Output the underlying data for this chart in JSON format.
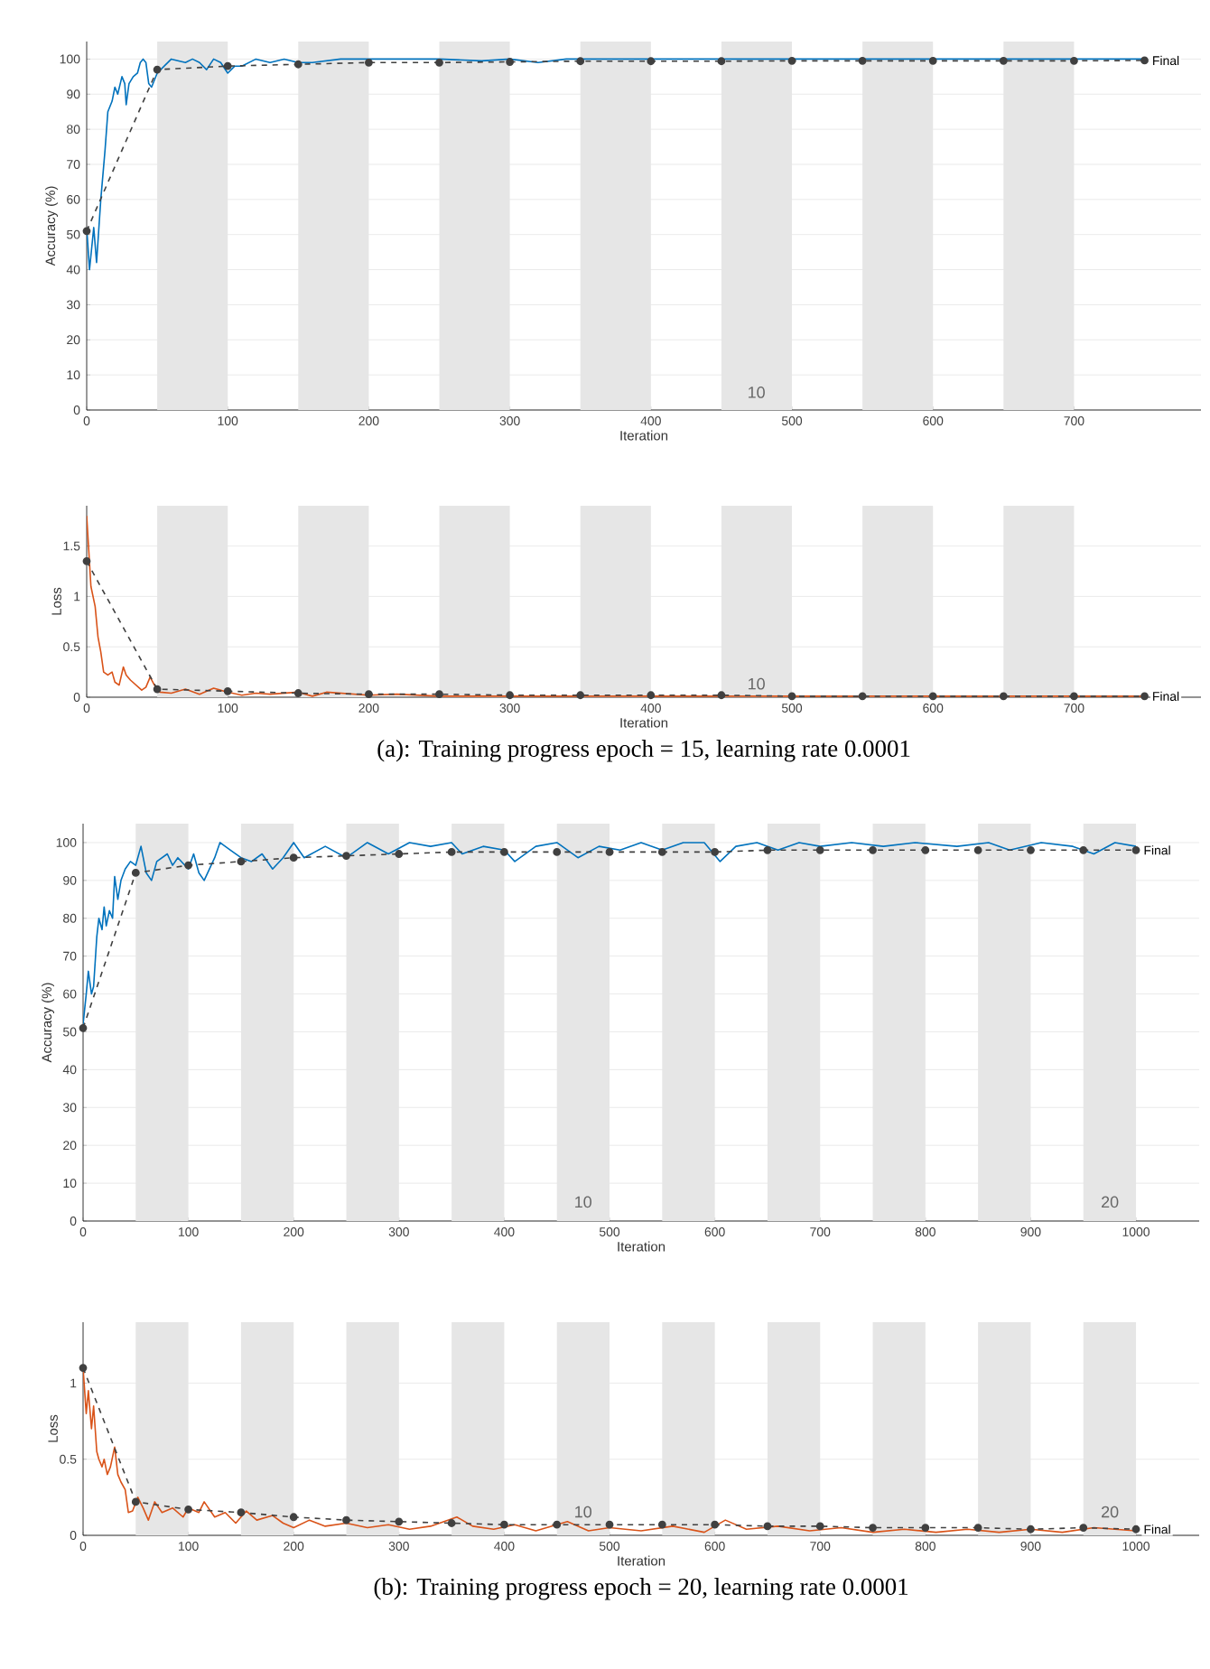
{
  "chart_data": [
    {
      "type": "line",
      "xlabel": "Iteration",
      "ylabel": "Accuracy (%)",
      "xlim": [
        0,
        790
      ],
      "xticks": [
        0,
        100,
        200,
        300,
        400,
        500,
        600,
        700
      ],
      "ylim": [
        0,
        105
      ],
      "yticks": [
        0,
        10,
        20,
        30,
        40,
        50,
        60,
        70,
        80,
        90,
        100
      ],
      "grid": "y",
      "bands": [
        {
          "axis": "x",
          "from": 50,
          "to": 100,
          "color": "#e6e6e6"
        },
        {
          "axis": "x",
          "from": 150,
          "to": 200,
          "color": "#e6e6e6"
        },
        {
          "axis": "x",
          "from": 250,
          "to": 300,
          "color": "#e6e6e6"
        },
        {
          "axis": "x",
          "from": 350,
          "to": 400,
          "color": "#e6e6e6"
        },
        {
          "axis": "x",
          "from": 450,
          "to": 500,
          "color": "#e6e6e6"
        },
        {
          "axis": "x",
          "from": 550,
          "to": 600,
          "color": "#e6e6e6"
        },
        {
          "axis": "x",
          "from": 650,
          "to": 700,
          "color": "#e6e6e6"
        }
      ],
      "series": [
        {
          "color": "#0072bd",
          "line_style": "solid",
          "marker": "none",
          "x": [
            0,
            2,
            5,
            7,
            10,
            13,
            15,
            18,
            20,
            22,
            25,
            27,
            28,
            30,
            33,
            36,
            38,
            40,
            42,
            44,
            46,
            48,
            50,
            55,
            60,
            70,
            75,
            80,
            85,
            90,
            95,
            100,
            105,
            110,
            120,
            130,
            140,
            150,
            160,
            180,
            200,
            250,
            280,
            300,
            320,
            340,
            400,
            500,
            600,
            700,
            750
          ],
          "values": [
            52,
            40,
            52,
            42,
            60,
            74,
            85,
            88,
            92,
            90,
            95,
            93,
            87,
            93,
            95,
            96,
            99,
            100,
            99,
            93,
            92,
            94,
            96,
            98,
            100,
            99,
            100,
            99,
            97,
            100,
            99,
            96,
            98,
            98,
            100,
            99,
            100,
            99,
            99,
            100,
            100,
            100,
            99.5,
            100,
            99,
            100,
            100,
            100,
            100,
            100,
            100
          ]
        },
        {
          "color": "#404040",
          "line_style": "dashed",
          "marker": "circle",
          "x": [
            0,
            50,
            100,
            150,
            200,
            250,
            300,
            350,
            400,
            450,
            500,
            550,
            600,
            650,
            700,
            750
          ],
          "values": [
            51,
            97,
            98,
            98.5,
            99,
            99,
            99.2,
            99.4,
            99.4,
            99.4,
            99.5,
            99.5,
            99.5,
            99.5,
            99.5,
            99.6
          ]
        }
      ],
      "annotations": [
        "Final",
        "10"
      ]
    },
    {
      "type": "line",
      "xlabel": "Iteration",
      "ylabel": "Loss",
      "xlim": [
        0,
        790
      ],
      "xticks": [
        0,
        100,
        200,
        300,
        400,
        500,
        600,
        700
      ],
      "ylim": [
        0,
        1.9
      ],
      "yticks": [
        0,
        0.5,
        1,
        1.5
      ],
      "grid": "y",
      "bands": [
        {
          "axis": "x",
          "from": 50,
          "to": 100,
          "color": "#e6e6e6"
        },
        {
          "axis": "x",
          "from": 150,
          "to": 200,
          "color": "#e6e6e6"
        },
        {
          "axis": "x",
          "from": 250,
          "to": 300,
          "color": "#e6e6e6"
        },
        {
          "axis": "x",
          "from": 350,
          "to": 400,
          "color": "#e6e6e6"
        },
        {
          "axis": "x",
          "from": 450,
          "to": 500,
          "color": "#e6e6e6"
        },
        {
          "axis": "x",
          "from": 550,
          "to": 600,
          "color": "#e6e6e6"
        },
        {
          "axis": "x",
          "from": 650,
          "to": 700,
          "color": "#e6e6e6"
        }
      ],
      "series": [
        {
          "color": "#d95319",
          "line_style": "solid",
          "marker": "none",
          "x": [
            0,
            3,
            6,
            8,
            10,
            12,
            15,
            18,
            20,
            23,
            26,
            28,
            31,
            35,
            39,
            42,
            45,
            48,
            52,
            60,
            70,
            80,
            90,
            100,
            110,
            120,
            130,
            150,
            160,
            170,
            200,
            220,
            250,
            300,
            350,
            400,
            500,
            600,
            700,
            750
          ],
          "values": [
            1.8,
            1.1,
            0.9,
            0.6,
            0.45,
            0.25,
            0.22,
            0.25,
            0.15,
            0.12,
            0.3,
            0.22,
            0.17,
            0.12,
            0.07,
            0.1,
            0.2,
            0.12,
            0.05,
            0.04,
            0.08,
            0.03,
            0.09,
            0.05,
            0.02,
            0.04,
            0.03,
            0.05,
            0.01,
            0.05,
            0.02,
            0.03,
            0.01,
            0.01,
            0.01,
            0.01,
            0.01,
            0.01,
            0.01,
            0.01
          ]
        },
        {
          "color": "#404040",
          "line_style": "dashed",
          "marker": "circle",
          "x": [
            0,
            50,
            100,
            150,
            200,
            250,
            300,
            350,
            400,
            450,
            500,
            550,
            600,
            650,
            700,
            750
          ],
          "values": [
            1.35,
            0.08,
            0.06,
            0.04,
            0.03,
            0.03,
            0.02,
            0.02,
            0.02,
            0.02,
            0.01,
            0.01,
            0.01,
            0.01,
            0.01,
            0.01
          ]
        }
      ],
      "annotations": [
        "Final",
        "10",
        "(a): Training progress epoch = 15, learning rate 0.0001"
      ]
    },
    {
      "type": "line",
      "xlabel": "Iteration",
      "ylabel": "Accuracy (%)",
      "xlim": [
        0,
        1060
      ],
      "xticks": [
        0,
        100,
        200,
        300,
        400,
        500,
        600,
        700,
        800,
        900,
        1000
      ],
      "ylim": [
        0,
        105
      ],
      "yticks": [
        0,
        10,
        20,
        30,
        40,
        50,
        60,
        70,
        80,
        90,
        100
      ],
      "grid": "y",
      "bands": [
        {
          "axis": "x",
          "from": 50,
          "to": 100,
          "color": "#e6e6e6"
        },
        {
          "axis": "x",
          "from": 150,
          "to": 200,
          "color": "#e6e6e6"
        },
        {
          "axis": "x",
          "from": 250,
          "to": 300,
          "color": "#e6e6e6"
        },
        {
          "axis": "x",
          "from": 350,
          "to": 400,
          "color": "#e6e6e6"
        },
        {
          "axis": "x",
          "from": 450,
          "to": 500,
          "color": "#e6e6e6"
        },
        {
          "axis": "x",
          "from": 550,
          "to": 600,
          "color": "#e6e6e6"
        },
        {
          "axis": "x",
          "from": 650,
          "to": 700,
          "color": "#e6e6e6"
        },
        {
          "axis": "x",
          "from": 750,
          "to": 800,
          "color": "#e6e6e6"
        },
        {
          "axis": "x",
          "from": 850,
          "to": 900,
          "color": "#e6e6e6"
        },
        {
          "axis": "x",
          "from": 950,
          "to": 1000,
          "color": "#e6e6e6"
        }
      ],
      "series": [
        {
          "color": "#0072bd",
          "line_style": "solid",
          "marker": "none",
          "x": [
            0,
            3,
            5,
            8,
            10,
            13,
            15,
            18,
            20,
            22,
            25,
            28,
            30,
            33,
            36,
            40,
            45,
            50,
            55,
            60,
            65,
            70,
            80,
            85,
            90,
            100,
            105,
            110,
            115,
            125,
            130,
            140,
            150,
            160,
            170,
            180,
            190,
            200,
            210,
            230,
            250,
            270,
            290,
            310,
            330,
            350,
            360,
            380,
            400,
            410,
            430,
            450,
            470,
            490,
            510,
            530,
            550,
            570,
            590,
            605,
            620,
            640,
            660,
            680,
            700,
            730,
            760,
            790,
            830,
            860,
            880,
            910,
            940,
            960,
            980,
            1000
          ],
          "values": [
            52,
            60,
            66,
            60,
            62,
            75,
            80,
            77,
            83,
            78,
            82,
            80,
            91,
            85,
            90,
            93,
            95,
            94,
            99,
            92,
            90,
            95,
            97,
            94,
            96,
            93,
            97,
            92,
            90,
            96,
            100,
            98,
            96,
            95,
            97,
            93,
            96,
            100,
            96,
            99,
            96,
            100,
            97,
            100,
            99,
            100,
            97,
            99,
            98,
            95,
            99,
            100,
            96,
            99,
            98,
            100,
            98,
            100,
            100,
            95,
            99,
            100,
            98,
            100,
            99,
            100,
            99,
            100,
            99,
            100,
            98,
            100,
            99,
            97,
            100,
            99
          ]
        },
        {
          "color": "#404040",
          "line_style": "dashed",
          "marker": "circle",
          "x": [
            0,
            50,
            100,
            150,
            200,
            250,
            300,
            350,
            400,
            450,
            500,
            550,
            600,
            650,
            700,
            750,
            800,
            850,
            900,
            950,
            1000
          ],
          "values": [
            51,
            92,
            94,
            95,
            96,
            96.5,
            97,
            97.5,
            97.5,
            97.5,
            97.5,
            97.5,
            97.5,
            98,
            98,
            98,
            98,
            98,
            98,
            98,
            98
          ]
        }
      ],
      "annotations": [
        "Final",
        "10",
        "20"
      ]
    },
    {
      "type": "line",
      "xlabel": "Iteration",
      "ylabel": "Loss",
      "xlim": [
        0,
        1060
      ],
      "xticks": [
        0,
        100,
        200,
        300,
        400,
        500,
        600,
        700,
        800,
        900,
        1000
      ],
      "ylim": [
        0,
        1.4
      ],
      "yticks": [
        0,
        0.5,
        1
      ],
      "grid": "y",
      "bands": [
        {
          "axis": "x",
          "from": 50,
          "to": 100,
          "color": "#e6e6e6"
        },
        {
          "axis": "x",
          "from": 150,
          "to": 200,
          "color": "#e6e6e6"
        },
        {
          "axis": "x",
          "from": 250,
          "to": 300,
          "color": "#e6e6e6"
        },
        {
          "axis": "x",
          "from": 350,
          "to": 400,
          "color": "#e6e6e6"
        },
        {
          "axis": "x",
          "from": 450,
          "to": 500,
          "color": "#e6e6e6"
        },
        {
          "axis": "x",
          "from": 550,
          "to": 600,
          "color": "#e6e6e6"
        },
        {
          "axis": "x",
          "from": 650,
          "to": 700,
          "color": "#e6e6e6"
        },
        {
          "axis": "x",
          "from": 750,
          "to": 800,
          "color": "#e6e6e6"
        },
        {
          "axis": "x",
          "from": 850,
          "to": 900,
          "color": "#e6e6e6"
        },
        {
          "axis": "x",
          "from": 950,
          "to": 1000,
          "color": "#e6e6e6"
        }
      ],
      "series": [
        {
          "color": "#d95319",
          "line_style": "solid",
          "marker": "none",
          "x": [
            0,
            3,
            5,
            8,
            10,
            13,
            15,
            18,
            20,
            23,
            26,
            30,
            33,
            36,
            40,
            43,
            47,
            52,
            57,
            62,
            68,
            75,
            85,
            95,
            100,
            110,
            115,
            125,
            135,
            145,
            155,
            165,
            180,
            190,
            200,
            215,
            230,
            250,
            270,
            290,
            310,
            330,
            355,
            370,
            390,
            410,
            430,
            460,
            480,
            500,
            530,
            560,
            590,
            610,
            630,
            660,
            690,
            720,
            750,
            780,
            810,
            840,
            870,
            900,
            930,
            960,
            1000
          ],
          "values": [
            1.1,
            0.8,
            0.95,
            0.7,
            0.85,
            0.55,
            0.5,
            0.45,
            0.5,
            0.4,
            0.45,
            0.58,
            0.4,
            0.35,
            0.3,
            0.15,
            0.16,
            0.25,
            0.18,
            0.1,
            0.22,
            0.15,
            0.18,
            0.12,
            0.18,
            0.15,
            0.22,
            0.12,
            0.15,
            0.08,
            0.16,
            0.1,
            0.13,
            0.08,
            0.05,
            0.1,
            0.06,
            0.08,
            0.05,
            0.07,
            0.04,
            0.06,
            0.12,
            0.06,
            0.04,
            0.07,
            0.03,
            0.09,
            0.03,
            0.05,
            0.03,
            0.06,
            0.02,
            0.1,
            0.04,
            0.06,
            0.03,
            0.05,
            0.02,
            0.04,
            0.02,
            0.04,
            0.02,
            0.04,
            0.02,
            0.05,
            0.03
          ]
        },
        {
          "color": "#404040",
          "line_style": "dashed",
          "marker": "circle",
          "x": [
            0,
            50,
            100,
            150,
            200,
            250,
            300,
            350,
            400,
            450,
            500,
            550,
            600,
            650,
            700,
            750,
            800,
            850,
            900,
            950,
            1000
          ],
          "values": [
            1.1,
            0.22,
            0.17,
            0.15,
            0.12,
            0.1,
            0.09,
            0.08,
            0.07,
            0.07,
            0.07,
            0.07,
            0.07,
            0.06,
            0.06,
            0.05,
            0.05,
            0.05,
            0.04,
            0.05,
            0.04
          ]
        }
      ],
      "annotations": [
        "Final",
        "10",
        "20",
        "(b): Training progress epoch = 20, learning rate 0.0001"
      ]
    }
  ]
}
